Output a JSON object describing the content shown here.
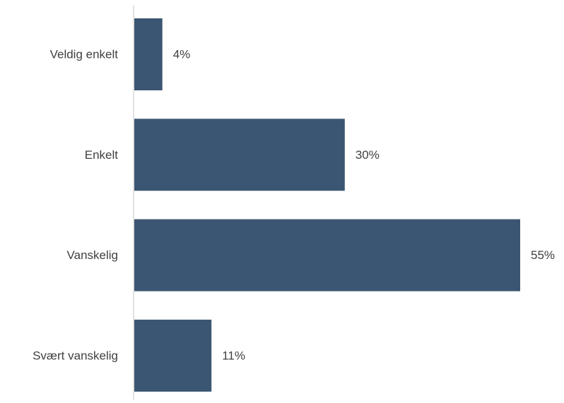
{
  "chart_data": {
    "type": "bar",
    "orientation": "horizontal",
    "categories": [
      "Veldig enkelt",
      "Enkelt",
      "Vanskelig",
      "Svært vanskelig"
    ],
    "values": [
      4,
      30,
      55,
      11
    ],
    "data_labels": [
      "4%",
      "30%",
      "55%",
      "11%"
    ],
    "unit": "%",
    "xlim": [
      0,
      55
    ],
    "grid": false,
    "legend": "none",
    "bar_color": "#3b5672",
    "axis_color": "#d9d9d9",
    "label_color": "#404040"
  }
}
